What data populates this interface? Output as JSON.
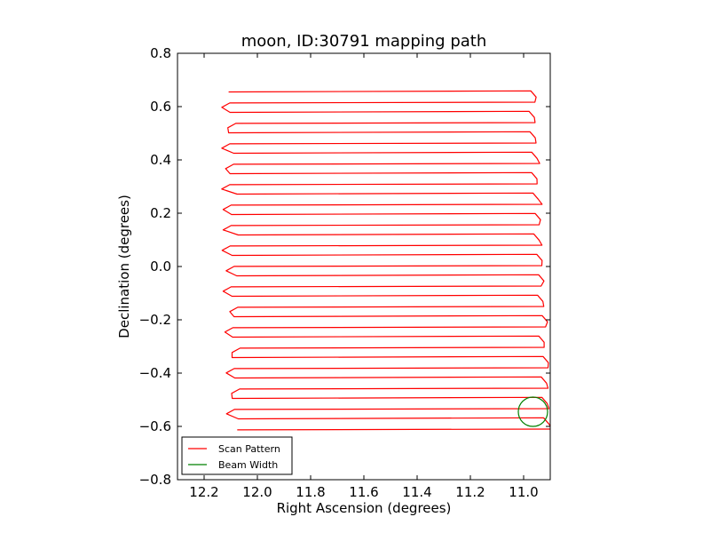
{
  "chart_data": {
    "type": "line",
    "title": "moon, ID:30791 mapping path",
    "xlabel": "Right Ascension (degrees)",
    "ylabel": "Declination (degrees)",
    "xlim": [
      12.3,
      10.9
    ],
    "ylim": [
      -0.8,
      0.8
    ],
    "x_inverted": true,
    "grid": false,
    "legend_placement": "lower-left",
    "xticks": [
      12.2,
      12.0,
      11.8,
      11.6,
      11.4,
      11.2,
      11.0
    ],
    "xtick_labels": [
      "12.2",
      "12.0",
      "11.8",
      "11.6",
      "11.4",
      "11.2",
      "11.0"
    ],
    "yticks": [
      0.8,
      0.6,
      0.4,
      0.2,
      0.0,
      -0.2,
      -0.4,
      -0.6,
      -0.8
    ],
    "ytick_labels": [
      "0.8",
      "0.6",
      "0.4",
      "0.2",
      "0.0",
      "−0.2",
      "−0.4",
      "−0.6",
      "−0.8"
    ],
    "series": [
      {
        "name": "Scan Pattern",
        "color": "#ff0000",
        "kind": "raster-scan",
        "rows": 34,
        "dec_start": 0.655,
        "dec_end": -0.61,
        "ra_left_start": 12.1,
        "ra_left_end": 12.08,
        "ra_right_start": 10.97,
        "ra_right_end": 10.91
      },
      {
        "name": "Beam Width",
        "color": "#008000",
        "kind": "circle",
        "center": [
          10.965,
          -0.545
        ],
        "radius_dec": 0.055
      }
    ]
  }
}
